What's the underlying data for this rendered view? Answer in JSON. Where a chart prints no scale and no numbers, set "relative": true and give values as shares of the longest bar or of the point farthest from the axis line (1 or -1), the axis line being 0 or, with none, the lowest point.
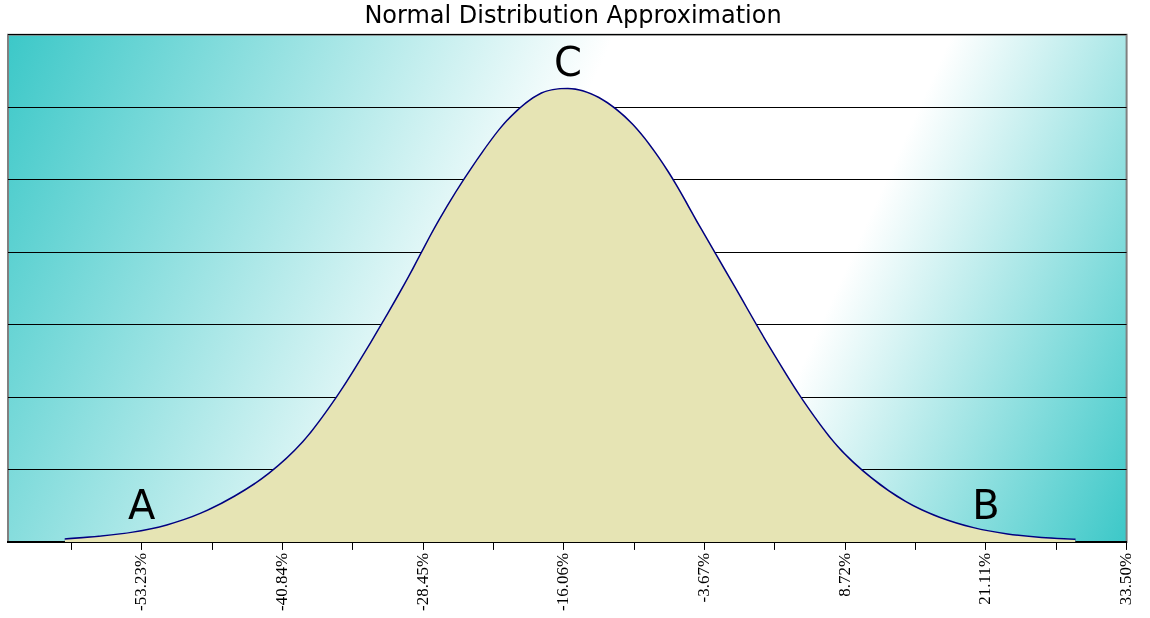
{
  "chart_data": {
    "type": "area",
    "title": "Normal Distribution Approximation",
    "relative": true,
    "x": [
      -60,
      -57,
      -54,
      -51,
      -48,
      -45,
      -42,
      -39,
      -36,
      -33,
      -30,
      -27,
      -24,
      -21,
      -18,
      -15.7,
      -13,
      -10,
      -7,
      -4,
      -1,
      2,
      5,
      8,
      11,
      14,
      17,
      20,
      23,
      26,
      29
    ],
    "series": [
      {
        "color": "#e6e4b4",
        "values": [
          0.005,
          0.011,
          0.02,
          0.036,
          0.062,
          0.1,
          0.15,
          0.22,
          0.32,
          0.44,
          0.57,
          0.71,
          0.83,
          0.93,
          0.99,
          1,
          0.98,
          0.92,
          0.82,
          0.69,
          0.56,
          0.43,
          0.31,
          0.21,
          0.14,
          0.088,
          0.053,
          0.03,
          0.016,
          0.008,
          0.004
        ]
      },
      {
        "type": "line",
        "color": "#000080",
        "values": [
          0.005,
          0.011,
          0.02,
          0.036,
          0.062,
          0.1,
          0.15,
          0.22,
          0.32,
          0.44,
          0.57,
          0.71,
          0.83,
          0.93,
          0.99,
          1,
          0.98,
          0.92,
          0.82,
          0.69,
          0.56,
          0.43,
          0.31,
          0.21,
          0.14,
          0.088,
          0.053,
          0.03,
          0.016,
          0.008,
          0.004
        ]
      }
    ],
    "xlim": [
      -65,
      33.5
    ],
    "xticks": [
      {
        "value": -59.425,
        "label": null
      },
      {
        "value": -53.23,
        "label": "-53.23%"
      },
      {
        "value": -47.035,
        "label": null
      },
      {
        "value": -40.84,
        "label": "-40.84%"
      },
      {
        "value": -34.645,
        "label": null
      },
      {
        "value": -28.45,
        "label": "-28.45%"
      },
      {
        "value": -22.255,
        "label": null
      },
      {
        "value": -16.06,
        "label": "-16.06%"
      },
      {
        "value": -9.865,
        "label": null
      },
      {
        "value": -3.67,
        "label": "-3.67%"
      },
      {
        "value": 2.525,
        "label": null
      },
      {
        "value": 8.72,
        "label": "8.72%"
      },
      {
        "value": 14.915,
        "label": null
      },
      {
        "value": 21.11,
        "label": "21.11%"
      },
      {
        "value": 27.305,
        "label": null
      },
      {
        "value": 33.5,
        "label": "33.50%"
      }
    ],
    "annotations": [
      {
        "text": "A",
        "x": -53.23,
        "y": 0.02
      },
      {
        "text": "B",
        "x": 21.11,
        "y": 0.02
      },
      {
        "text": "C",
        "x": -15.7,
        "y": 1
      }
    ],
    "grid": "y",
    "legend": false
  }
}
